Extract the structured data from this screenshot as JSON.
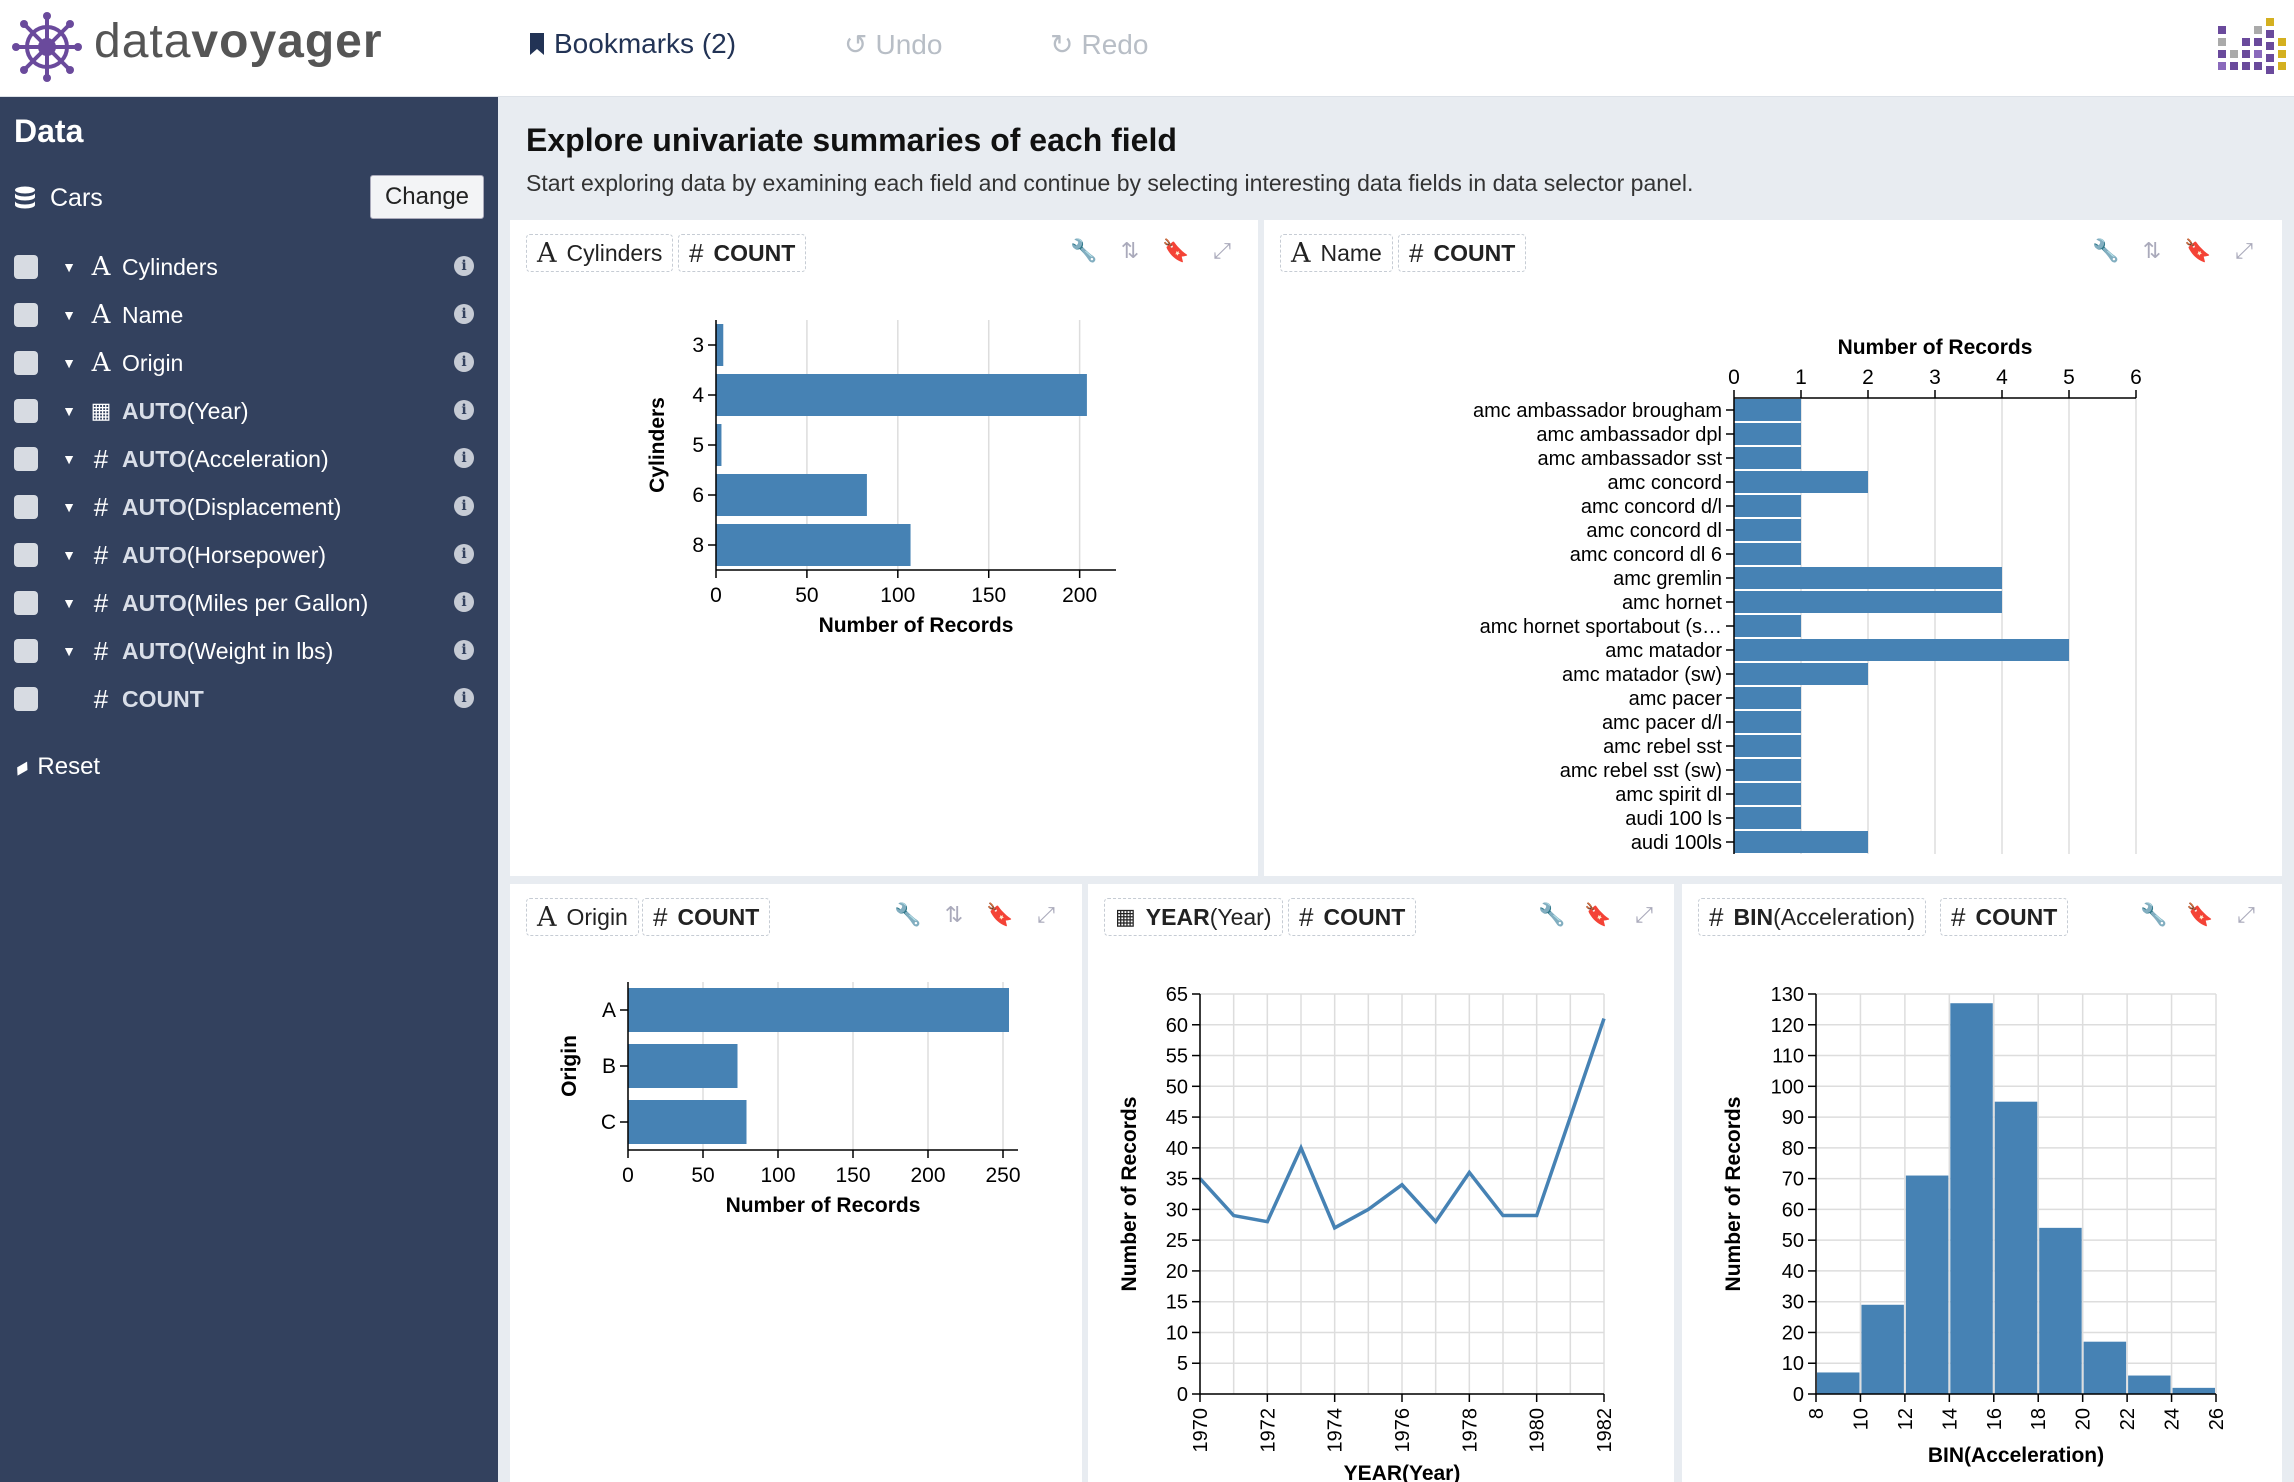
{
  "app": {
    "logo_data": "data",
    "logo_voyager": "voyager",
    "bookmarks_label": "Bookmarks (2)",
    "undo_label": "Undo",
    "redo_label": "Redo"
  },
  "sidebar": {
    "title": "Data",
    "dataset": "Cars",
    "change_label": "Change",
    "fields": [
      {
        "type": "A",
        "agg": "",
        "name": "Cylinders",
        "caret": true
      },
      {
        "type": "A",
        "agg": "",
        "name": "Name",
        "caret": true
      },
      {
        "type": "A",
        "agg": "",
        "name": "Origin",
        "caret": true
      },
      {
        "type": "cal",
        "agg": "AUTO",
        "name": " (Year)",
        "caret": true
      },
      {
        "type": "#",
        "agg": "AUTO",
        "name": " (Acceleration)",
        "caret": true
      },
      {
        "type": "#",
        "agg": "AUTO",
        "name": " (Displacement)",
        "caret": true
      },
      {
        "type": "#",
        "agg": "AUTO",
        "name": " (Horsepower)",
        "caret": true
      },
      {
        "type": "#",
        "agg": "AUTO",
        "name": " (Miles per Gallon)",
        "caret": true
      },
      {
        "type": "#",
        "agg": "AUTO",
        "name": " (Weight in lbs)",
        "caret": true
      },
      {
        "type": "#",
        "agg": "COUNT",
        "name": "",
        "caret": false
      }
    ],
    "reset_label": "Reset"
  },
  "main": {
    "title": "Explore univariate summaries of each field",
    "subtitle": "Start exploring data by examining each field and continue by selecting interesting data fields in data selector panel."
  },
  "panels": {
    "cylinders": {
      "field_label": "Cylinders",
      "count_label": "COUNT"
    },
    "name": {
      "field_label": "Name",
      "count_label": "COUNT"
    },
    "origin": {
      "field_label": "Origin",
      "count_label": "COUNT"
    },
    "year": {
      "field_fn": "YEAR",
      "field_label": " (Year)",
      "count_label": "COUNT"
    },
    "acceleration": {
      "field_fn": "BIN",
      "field_label": " (Acceleration)",
      "count_label": "COUNT"
    }
  },
  "chart_data": [
    {
      "id": "cylinders",
      "type": "bar",
      "orientation": "horizontal",
      "categories": [
        "3",
        "4",
        "5",
        "6",
        "8"
      ],
      "values": [
        4,
        204,
        3,
        83,
        107
      ],
      "xlabel": "Number of Records",
      "ylabel": "Cylinders",
      "xlim": [
        0,
        220
      ],
      "xticks": [
        0,
        50,
        100,
        150,
        200
      ],
      "grid": true
    },
    {
      "id": "name",
      "type": "bar",
      "orientation": "horizontal",
      "categories": [
        "amc ambassador brougham",
        "amc ambassador dpl",
        "amc ambassador sst",
        "amc concord",
        "amc concord d/l",
        "amc concord dl",
        "amc concord dl 6",
        "amc gremlin",
        "amc hornet",
        "amc hornet sportabout (s…",
        "amc matador",
        "amc matador (sw)",
        "amc pacer",
        "amc pacer d/l",
        "amc rebel sst",
        "amc rebel sst (sw)",
        "amc spirit dl",
        "audi 100 ls",
        "audi 100ls"
      ],
      "values": [
        1,
        1,
        1,
        2,
        1,
        1,
        1,
        4,
        4,
        1,
        5,
        2,
        1,
        1,
        1,
        1,
        1,
        1,
        2
      ],
      "xlabel": "Number of Records",
      "xlim": [
        0,
        6
      ],
      "xticks": [
        0,
        1,
        2,
        3,
        4,
        5,
        6
      ],
      "x_axis_position": "top",
      "grid": true
    },
    {
      "id": "origin",
      "type": "bar",
      "orientation": "horizontal",
      "categories": [
        "A",
        "B",
        "C"
      ],
      "values": [
        254,
        73,
        79
      ],
      "xlabel": "Number of Records",
      "ylabel": "Origin",
      "xlim": [
        0,
        260
      ],
      "xticks": [
        0,
        50,
        100,
        150,
        200,
        250
      ],
      "grid": true
    },
    {
      "id": "year",
      "type": "line",
      "x": [
        1970,
        1971,
        1972,
        1973,
        1974,
        1975,
        1976,
        1977,
        1978,
        1979,
        1980,
        1982
      ],
      "values": [
        35,
        29,
        28,
        40,
        27,
        30,
        34,
        28,
        36,
        29,
        29,
        61
      ],
      "xlabel": "YEAR(Year)",
      "ylabel": "Number of Records",
      "xlim": [
        1970,
        1982
      ],
      "ylim": [
        0,
        65
      ],
      "xticks": [
        1970,
        1972,
        1974,
        1976,
        1978,
        1980,
        1982
      ],
      "yticks": [
        0,
        5,
        10,
        15,
        20,
        25,
        30,
        35,
        40,
        45,
        50,
        55,
        60,
        65
      ],
      "grid": true
    },
    {
      "id": "acceleration",
      "type": "bar",
      "bin_edges": [
        8,
        10,
        12,
        14,
        16,
        18,
        20,
        22,
        24,
        26
      ],
      "values": [
        7,
        29,
        71,
        127,
        95,
        54,
        17,
        6,
        2
      ],
      "xlabel": "BIN(Acceleration)",
      "ylabel": "Number of Records",
      "xlim": [
        8,
        26
      ],
      "ylim": [
        0,
        130
      ],
      "xticks": [
        8,
        10,
        12,
        14,
        16,
        18,
        20,
        22,
        24,
        26
      ],
      "yticks": [
        0,
        10,
        20,
        30,
        40,
        50,
        60,
        70,
        80,
        90,
        100,
        110,
        120,
        130
      ],
      "grid": true
    }
  ]
}
